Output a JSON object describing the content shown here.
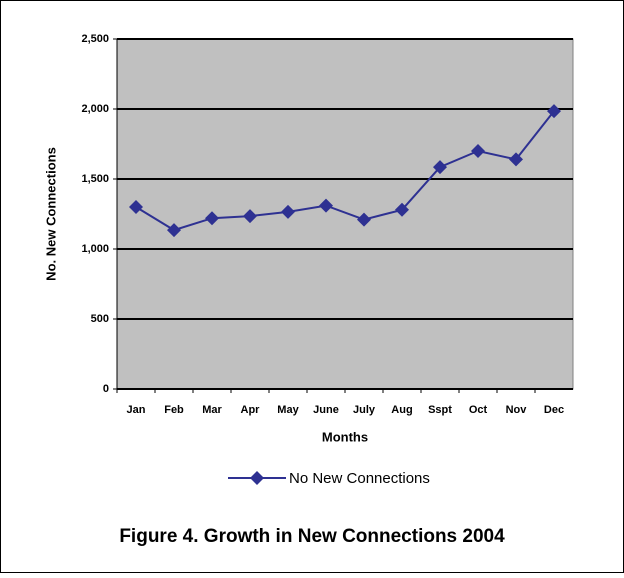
{
  "chart_data": {
    "type": "line",
    "title": "Figure 4. Growth in New Connections 2004",
    "x_label": "Months",
    "y_label": "No. New Connections",
    "categories": [
      "Jan",
      "Feb",
      "Mar",
      "Apr",
      "May",
      "June",
      "July",
      "Aug",
      "Sspt",
      "Oct",
      "Nov",
      "Dec"
    ],
    "series": [
      {
        "name": "No New Connections",
        "color": "#2e3192",
        "values": [
          1300,
          1135,
          1220,
          1235,
          1265,
          1310,
          1210,
          1280,
          1585,
          1700,
          1640,
          1985
        ]
      }
    ],
    "ylim": [
      0,
      2500
    ],
    "yticks": [
      0,
      {
        "value": 500,
        "label": "500"
      },
      {
        "value": 1000,
        "label": "1,000"
      },
      {
        "value": 1500,
        "label": "1,500"
      },
      {
        "value": 2000,
        "label": "2,000"
      },
      {
        "value": 2500,
        "label": "2,500"
      }
    ],
    "grid": true,
    "plot_background": "#c0c0c0"
  }
}
